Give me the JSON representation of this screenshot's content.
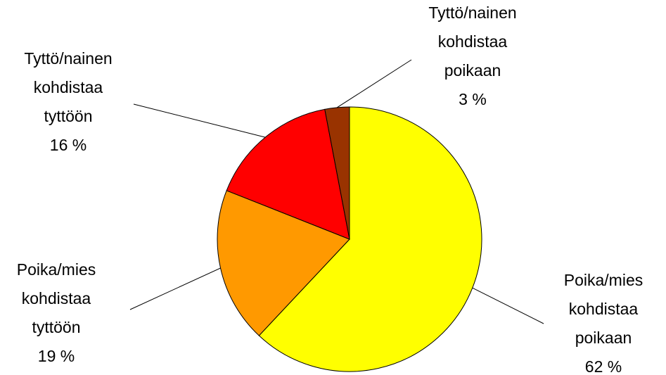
{
  "chart_data": {
    "type": "pie",
    "categories": [
      "Poika/mies kohdistaa poikaan",
      "Poika/mies kohdistaa tyttöön",
      "Tyttö/nainen kohdistaa tyttöön",
      "Tyttö/nainen kohdistaa poikaan"
    ],
    "values": [
      62,
      19,
      16,
      3
    ],
    "value_labels": [
      "62 %",
      "19 %",
      "16 %",
      "3 %"
    ],
    "colors": [
      "#ffff00",
      "#ff9900",
      "#ff0000",
      "#993300"
    ],
    "start_angle": "top",
    "direction": "clockwise"
  }
}
